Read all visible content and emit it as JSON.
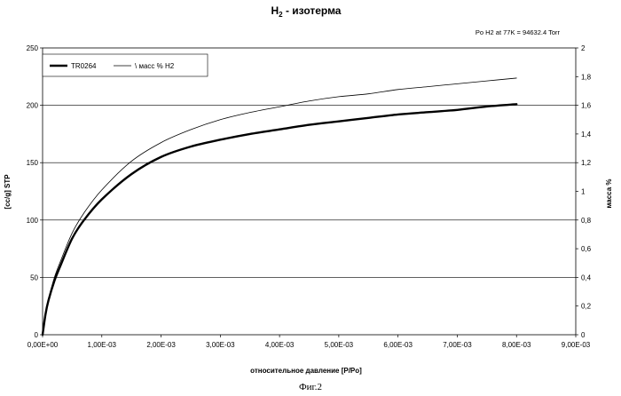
{
  "chart_data": {
    "type": "line",
    "title_main": "H",
    "title_sub": "2",
    "title_rest": " - изотерма",
    "subtitle": "Po H2 at 77K = 94632.4 Torr",
    "xlabel": "относительное давление [P/Po]",
    "ylabel": "[cc/g] STP",
    "y2label": "масса %",
    "caption": "Фиг.2",
    "xlim": [
      0,
      0.009
    ],
    "ylim": [
      0,
      250
    ],
    "y2lim": [
      0,
      2
    ],
    "grid": true,
    "legend_position": "top-left",
    "x_ticks": [
      0,
      0.001,
      0.002,
      0.003,
      0.004,
      0.005,
      0.006,
      0.007,
      0.008,
      0.009
    ],
    "x_tick_labels": [
      "0,00E+00",
      "1,00E-03",
      "2,00E-03",
      "3,00E-03",
      "4,00E-03",
      "5,00E-03",
      "6,00E-03",
      "7,00E-03",
      "8,00E-03",
      "9,00E-03"
    ],
    "y_ticks": [
      0,
      50,
      100,
      150,
      200,
      250
    ],
    "y_tick_labels": [
      "0",
      "50",
      "100",
      "150",
      "200",
      "250"
    ],
    "y2_ticks": [
      0,
      0.2,
      0.4,
      0.6,
      0.8,
      1,
      1.2,
      1.4,
      1.6,
      1.8,
      2
    ],
    "y2_tick_labels": [
      "0",
      "0,2",
      "0,4",
      "0,6",
      "0,8",
      "1",
      "1,2",
      "1,4",
      "1,6",
      "1,8",
      "2"
    ],
    "series": [
      {
        "name": "TR0264",
        "axis": "left",
        "style": "thick",
        "x": [
          0,
          5e-05,
          0.0001,
          0.0002,
          0.0003,
          0.0005,
          0.0007,
          0.001,
          0.0015,
          0.002,
          0.0025,
          0.003,
          0.0035,
          0.004,
          0.0045,
          0.005,
          0.0055,
          0.006,
          0.0065,
          0.007,
          0.0075,
          0.008
        ],
        "y": [
          0,
          18,
          30,
          47,
          60,
          84,
          100,
          118,
          140,
          155,
          164,
          170,
          175,
          179,
          183,
          186,
          189,
          192,
          194,
          196,
          199,
          201
        ]
      },
      {
        "name": "\\ масс  % H2",
        "axis": "right",
        "style": "thin",
        "x": [
          0,
          5e-05,
          0.0001,
          0.0002,
          0.0003,
          0.0005,
          0.0007,
          0.001,
          0.0015,
          0.002,
          0.0025,
          0.003,
          0.0035,
          0.004,
          0.0045,
          0.005,
          0.0055,
          0.006,
          0.0065,
          0.007,
          0.0075,
          0.008
        ],
        "y": [
          0,
          0.15,
          0.25,
          0.4,
          0.51,
          0.71,
          0.85,
          1.01,
          1.21,
          1.34,
          1.43,
          1.5,
          1.55,
          1.59,
          1.63,
          1.66,
          1.68,
          1.71,
          1.73,
          1.75,
          1.77,
          1.79
        ]
      }
    ]
  }
}
